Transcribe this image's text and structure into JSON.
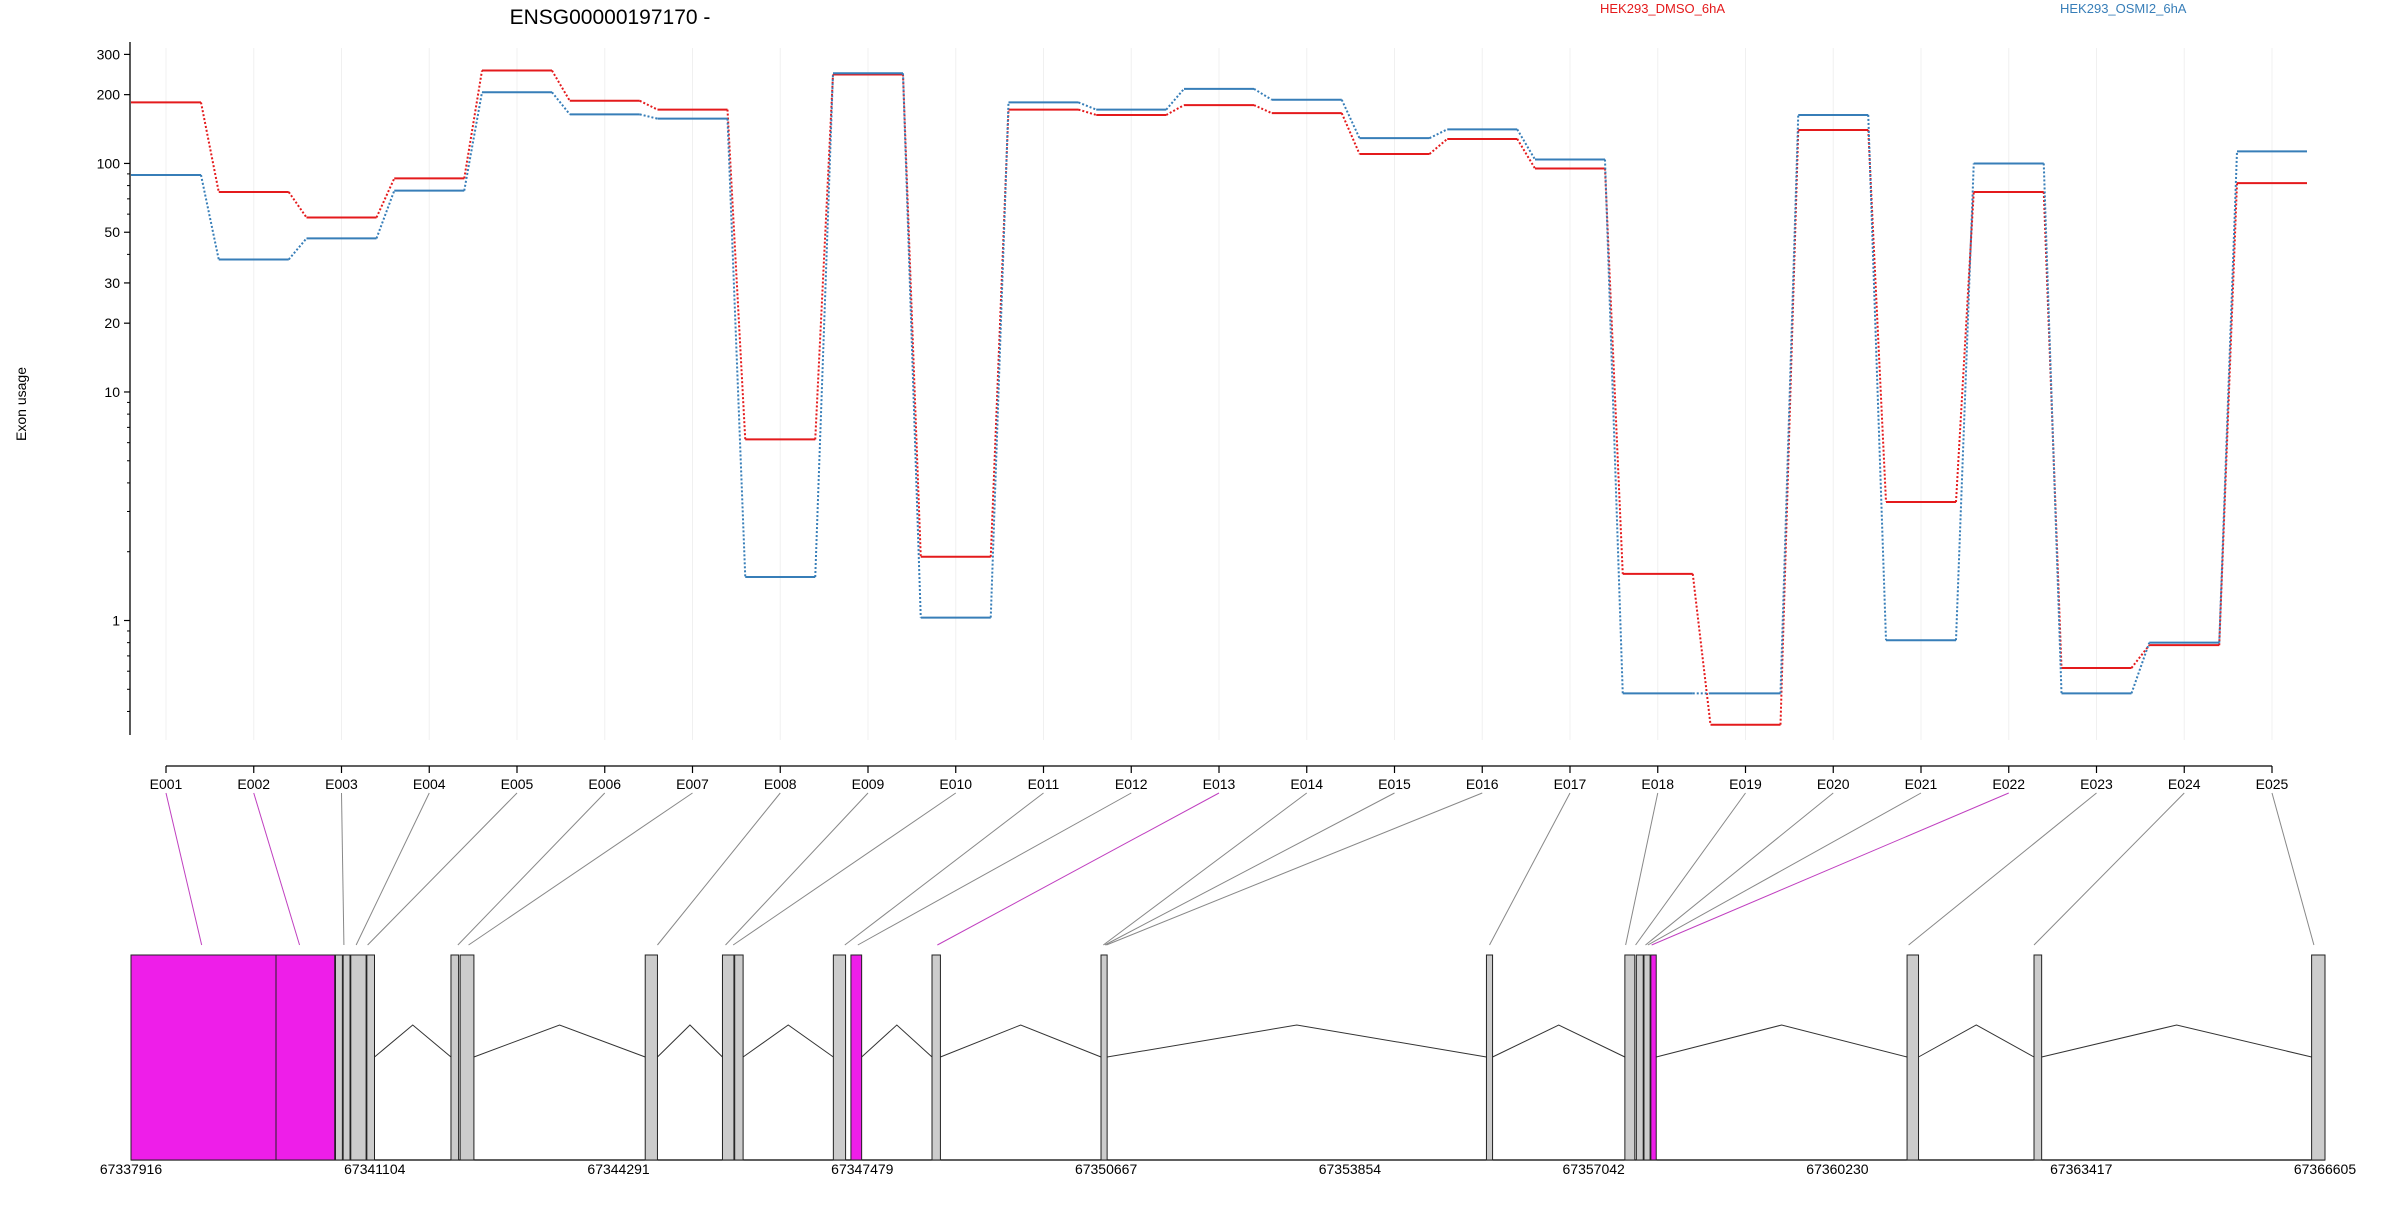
{
  "chart_data": {
    "type": "line",
    "title": "ENSG00000197170 -",
    "ylabel": "Exon usage",
    "yscale": "log",
    "y_ticks": [
      1,
      10,
      20,
      30,
      50,
      100,
      200,
      300
    ],
    "categories": [
      "E001",
      "E002",
      "E003",
      "E004",
      "E005",
      "E006",
      "E007",
      "E008",
      "E009",
      "E010",
      "E011",
      "E012",
      "E013",
      "E014",
      "E015",
      "E016",
      "E017",
      "E018",
      "E019",
      "E020",
      "E021",
      "E022",
      "E023",
      "E024",
      "E025"
    ],
    "series": [
      {
        "name": "HEK293_DMSO_6hA",
        "color": "#e41a1c",
        "values": [
          185,
          75,
          58,
          86,
          255,
          188,
          172,
          6.2,
          245,
          1.9,
          172,
          163,
          180,
          166,
          110,
          128,
          95,
          1.6,
          0.35,
          140,
          3.3,
          75,
          0.62,
          0.78,
          82
        ]
      },
      {
        "name": "HEK293_OSMI2_6hA",
        "color": "#377eb8",
        "values": [
          89,
          38,
          47,
          76,
          205,
          164,
          157,
          1.55,
          248,
          1.03,
          185,
          172,
          212,
          190,
          129,
          141,
          104,
          0.48,
          0.48,
          163,
          0.82,
          100,
          0.48,
          0.8,
          113
        ]
      }
    ],
    "gene_model": {
      "coordinate_labels": [
        "67337916",
        "67341104",
        "67344291",
        "67347479",
        "67350667",
        "67353854",
        "67357042",
        "67360230",
        "67363417",
        "67366605"
      ],
      "coordinate_min": 67337916,
      "coordinate_max": 67366605,
      "highlight_color": "#ee1ee9",
      "normal_color": "#cccccc",
      "exons": [
        {
          "start": 67337916,
          "end": 67340580,
          "highlight": true
        },
        {
          "start": 67340590,
          "end": 67340680,
          "highlight": false
        },
        {
          "start": 67340690,
          "end": 67340780,
          "highlight": false
        },
        {
          "start": 67340790,
          "end": 67340990,
          "highlight": false
        },
        {
          "start": 67341000,
          "end": 67341100,
          "highlight": false
        },
        {
          "start": 67342100,
          "end": 67342200,
          "highlight": false
        },
        {
          "start": 67342220,
          "end": 67342400,
          "highlight": false
        },
        {
          "start": 67344640,
          "end": 67344800,
          "highlight": false
        },
        {
          "start": 67345650,
          "end": 67345800,
          "highlight": false
        },
        {
          "start": 67345810,
          "end": 67345920,
          "highlight": false
        },
        {
          "start": 67347100,
          "end": 67347260,
          "highlight": false
        },
        {
          "start": 67347330,
          "end": 67347470,
          "highlight": true
        },
        {
          "start": 67348390,
          "end": 67348500,
          "highlight": false
        },
        {
          "start": 67350600,
          "end": 67350680,
          "highlight": false
        },
        {
          "start": 67355640,
          "end": 67355720,
          "highlight": false
        },
        {
          "start": 67357450,
          "end": 67357580,
          "highlight": false
        },
        {
          "start": 67357600,
          "end": 67357690,
          "highlight": false
        },
        {
          "start": 67357700,
          "end": 67357780,
          "highlight": false
        },
        {
          "start": 67357790,
          "end": 67357860,
          "highlight": true
        },
        {
          "start": 67361140,
          "end": 67361290,
          "highlight": false
        },
        {
          "start": 67362800,
          "end": 67362900,
          "highlight": false
        },
        {
          "start": 67366430,
          "end": 67366605,
          "highlight": false
        }
      ],
      "mapping_targets": [
        67338840,
        67340120,
        67340700,
        67340860,
        67341010,
        67342190,
        67342330,
        67344800,
        67345690,
        67345790,
        67347250,
        67347420,
        67348460,
        67350630,
        67350650,
        67350670,
        67355680,
        67357460,
        67357590,
        67357720,
        67357750,
        67357800,
        67361160,
        67362800,
        67366460
      ],
      "highlight_mappings": [
        0,
        1,
        12,
        21
      ]
    }
  }
}
